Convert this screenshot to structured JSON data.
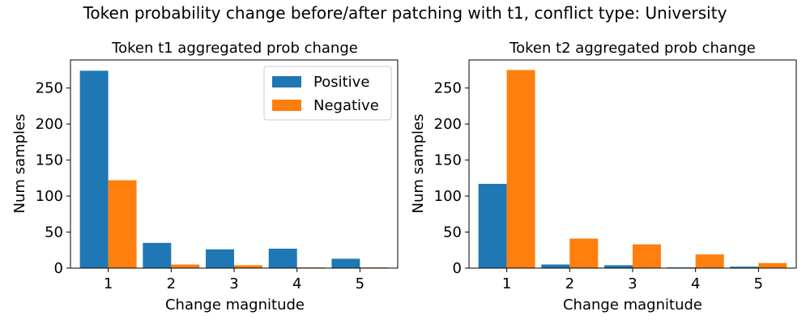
{
  "suptitle": "Token probability change before/after patching with t1, conflict type: University",
  "colors": {
    "positive": "#1f77b4",
    "negative": "#ff7f0e"
  },
  "chart_data": [
    {
      "type": "bar",
      "title": "Token t1 aggregated prob change",
      "xlabel": "Change magnitude",
      "ylabel": "Num samples",
      "categories": [
        "1",
        "2",
        "3",
        "4",
        "5"
      ],
      "ylim": [
        0,
        289
      ],
      "yticks": [
        0,
        50,
        100,
        150,
        200,
        250
      ],
      "legend": {
        "position": "top-right",
        "entries": [
          "Positive",
          "Negative"
        ]
      },
      "series": [
        {
          "name": "Positive",
          "values": [
            274,
            35,
            26,
            27,
            13
          ]
        },
        {
          "name": "Negative",
          "values": [
            122,
            5,
            4,
            1,
            1
          ]
        }
      ]
    },
    {
      "type": "bar",
      "title": "Token t2 aggregated prob change",
      "xlabel": "Change magnitude",
      "ylabel": "Num samples",
      "categories": [
        "1",
        "2",
        "3",
        "4",
        "5"
      ],
      "ylim": [
        0,
        289
      ],
      "yticks": [
        0,
        50,
        100,
        150,
        200,
        250
      ],
      "legend": null,
      "series": [
        {
          "name": "Positive",
          "values": [
            117,
            5,
            4,
            1,
            2
          ]
        },
        {
          "name": "Negative",
          "values": [
            275,
            41,
            33,
            19,
            7
          ]
        }
      ]
    }
  ]
}
